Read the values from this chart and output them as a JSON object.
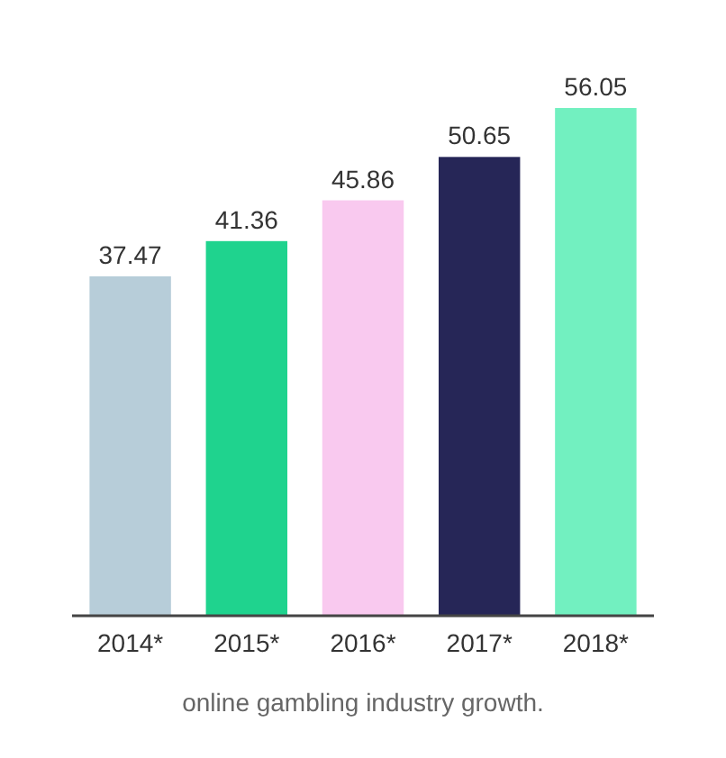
{
  "chart_data": {
    "type": "bar",
    "categories": [
      "2014*",
      "2015*",
      "2016*",
      "2017*",
      "2018*"
    ],
    "values": [
      37.47,
      41.36,
      45.86,
      50.65,
      56.05
    ],
    "colors": [
      "#b7cdd9",
      "#1fd38e",
      "#f9c9ef",
      "#262657",
      "#72f0c0"
    ],
    "data_labels": true,
    "annotations": [
      "online gambling industry growth."
    ]
  }
}
